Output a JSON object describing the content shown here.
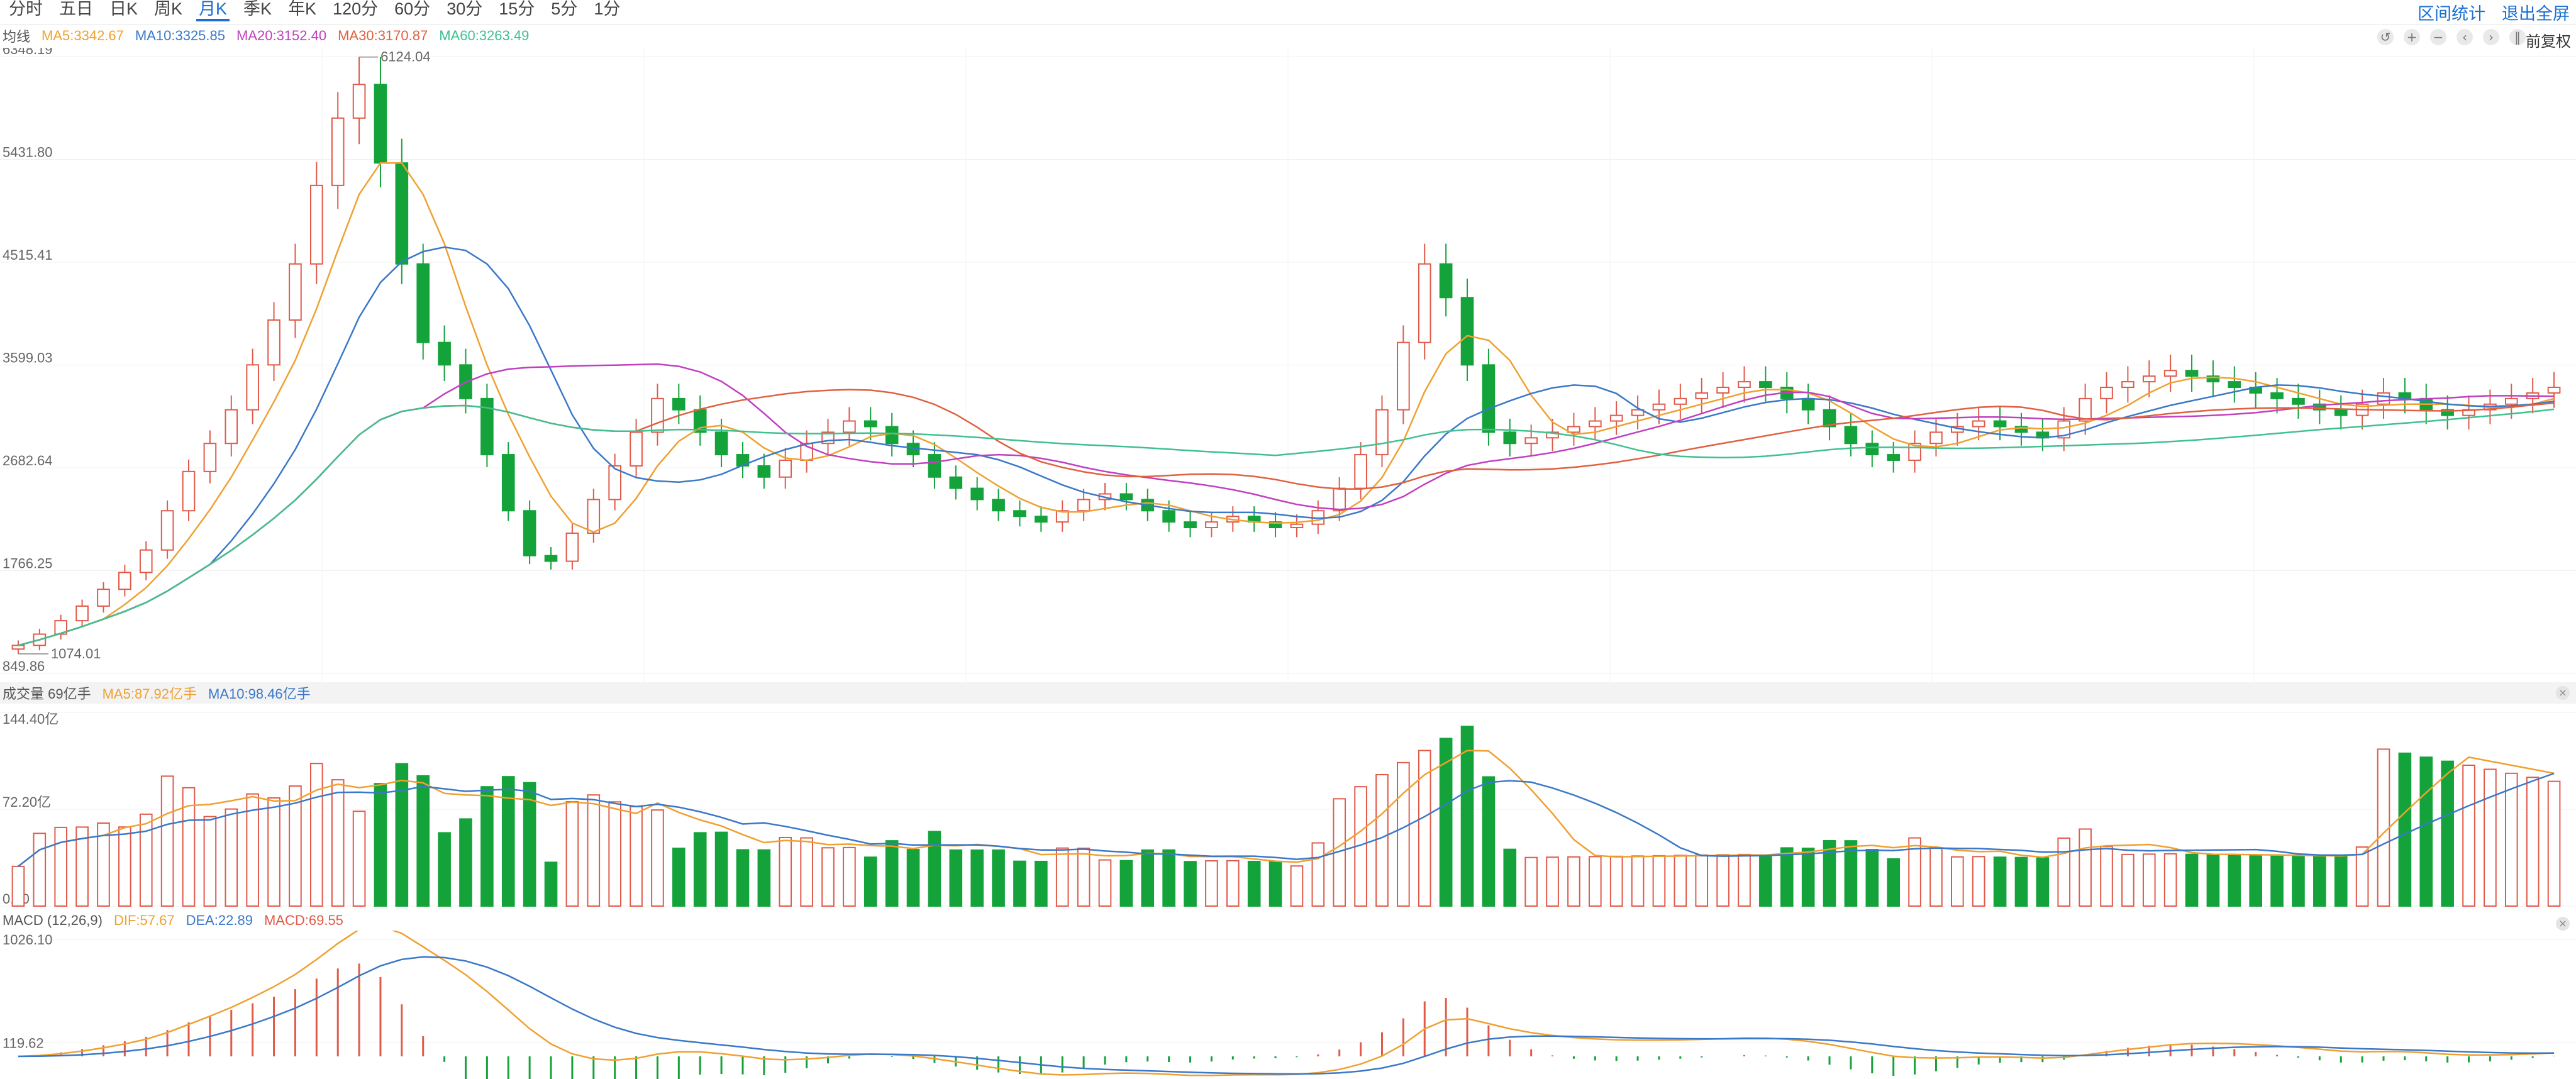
{
  "tabs": [
    "分时",
    "五日",
    "日K",
    "周K",
    "月K",
    "季K",
    "年K",
    "120分",
    "60分",
    "30分",
    "15分",
    "5分",
    "1分"
  ],
  "active_tab": "月K",
  "top_right": {
    "range_stats": "区间统计",
    "exit_fullscreen": "退出全屏"
  },
  "adjust_label": "前复权",
  "toolbar_icons": [
    "undo-icon",
    "zoom-in-icon",
    "zoom-out-icon",
    "prev-icon",
    "next-icon",
    "pause-icon"
  ],
  "main_legend": {
    "title": "均线",
    "ma5": "MA5:3342.67",
    "ma10": "MA10:3325.85",
    "ma20": "MA20:3152.40",
    "ma30": "MA30:3170.87",
    "ma60": "MA60:3263.49"
  },
  "volume_legend": {
    "title": "成交量 69亿手",
    "ma5": "MA5:87.92亿手",
    "ma10": "MA10:98.46亿手"
  },
  "macd_legend": {
    "title": "MACD (12,26,9)",
    "dif": "DIF:57.67",
    "dea": "DEA:22.89",
    "macd": "MACD:69.55"
  },
  "colors": {
    "up": "#e05a4a",
    "down": "#14a33a",
    "ma5": "#f0a030",
    "ma10": "#3a78c8",
    "ma20": "#c040c0",
    "ma30": "#e06040",
    "ma60": "#40c090",
    "accent": "#1a6fd1"
  },
  "chart_data": [
    {
      "type": "candlestick",
      "y_ticks": [
        "6348.19",
        "5431.80",
        "4515.41",
        "3599.03",
        "2682.64",
        "1766.25",
        "849.86"
      ],
      "ylim": [
        849.86,
        6348.19
      ],
      "annotations": {
        "high": "6124.04",
        "low": "1074.01"
      },
      "close_series": [
        1100,
        1200,
        1320,
        1450,
        1600,
        1750,
        1950,
        2300,
        2650,
        2900,
        3200,
        3600,
        4000,
        4500,
        5200,
        5800,
        6100,
        5400,
        4500,
        3800,
        3600,
        3300,
        2800,
        2300,
        1900,
        1850,
        2100,
        2400,
        2700,
        3000,
        3300,
        3200,
        3000,
        2800,
        2700,
        2600,
        2750,
        2900,
        3000,
        3100,
        3050,
        2900,
        2800,
        2600,
        2500,
        2400,
        2300,
        2250,
        2200,
        2300,
        2400,
        2450,
        2400,
        2300,
        2200,
        2150,
        2200,
        2250,
        2200,
        2150,
        2180,
        2300,
        2500,
        2800,
        3200,
        3800,
        4500,
        4200,
        3600,
        3000,
        2900,
        2950,
        3000,
        3050,
        3100,
        3150,
        3200,
        3250,
        3300,
        3350,
        3400,
        3450,
        3400,
        3300,
        3200,
        3050,
        2900,
        2800,
        2750,
        2900,
        3000,
        3050,
        3100,
        3050,
        3000,
        2950,
        3100,
        3300,
        3400,
        3450,
        3500,
        3550,
        3500,
        3450,
        3400,
        3350,
        3300,
        3250,
        3200,
        3150,
        3250,
        3350,
        3300,
        3200,
        3150,
        3200,
        3250,
        3300,
        3350,
        3400
      ],
      "ma_series": [
        "MA5",
        "MA10",
        "MA20",
        "MA30",
        "MA60"
      ]
    },
    {
      "type": "bar",
      "title": "成交量",
      "y_ticks": [
        "144.40亿",
        "72.20亿",
        "0.00"
      ],
      "ylim": [
        0,
        144.4
      ],
      "unit": "亿手",
      "last_value": 69
    },
    {
      "type": "macd",
      "y_ticks": [
        "1026.10",
        "119.62"
      ],
      "dif": 57.67,
      "dea": 22.89,
      "macd": 69.55
    }
  ]
}
